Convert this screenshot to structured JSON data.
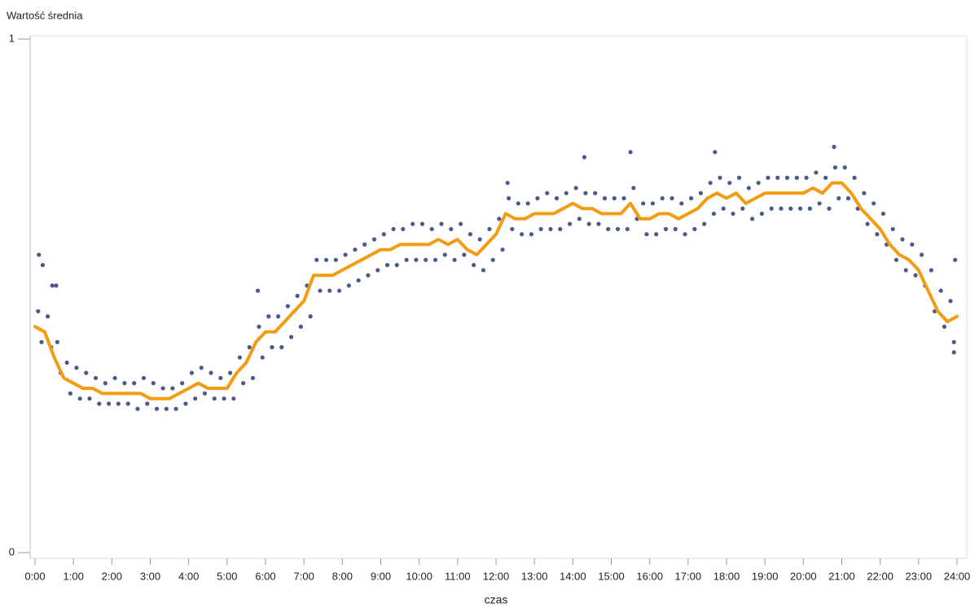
{
  "chart_data": {
    "type": "scatter",
    "y_label": "Wartość średnia",
    "x_label": "czas",
    "xlim": [
      0,
      24
    ],
    "ylim": [
      0,
      1
    ],
    "xticks": [
      {
        "value": 0,
        "label": "0:00"
      },
      {
        "value": 1,
        "label": "1:00"
      },
      {
        "value": 2,
        "label": "2:00"
      },
      {
        "value": 3,
        "label": "3:00"
      },
      {
        "value": 4,
        "label": "4:00"
      },
      {
        "value": 5,
        "label": "5:00"
      },
      {
        "value": 6,
        "label": "6:00"
      },
      {
        "value": 7,
        "label": "7:00"
      },
      {
        "value": 8,
        "label": "8:00"
      },
      {
        "value": 9,
        "label": "9:00"
      },
      {
        "value": 10,
        "label": "10:00"
      },
      {
        "value": 11,
        "label": "11:00"
      },
      {
        "value": 12,
        "label": "12:00"
      },
      {
        "value": 13,
        "label": "13:00"
      },
      {
        "value": 14,
        "label": "14:00"
      },
      {
        "value": 15,
        "label": "15:00"
      },
      {
        "value": 16,
        "label": "16:00"
      },
      {
        "value": 17,
        "label": "17:00"
      },
      {
        "value": 18,
        "label": "18:00"
      },
      {
        "value": 19,
        "label": "19:00"
      },
      {
        "value": 20,
        "label": "20:00"
      },
      {
        "value": 21,
        "label": "21:00"
      },
      {
        "value": 22,
        "label": "22:00"
      },
      {
        "value": 23,
        "label": "23:00"
      },
      {
        "value": 24,
        "label": "24:00"
      }
    ],
    "yticks": [
      0,
      1
    ],
    "series": [
      {
        "type": "scatter",
        "color": "#4b5a8c",
        "x": [
          0.08,
          0.17,
          0.33,
          0.42,
          0.58,
          0.67,
          0.83,
          0.92,
          1.08,
          1.17,
          1.33,
          1.42,
          1.58,
          1.67,
          1.83,
          1.92,
          2.08,
          2.17,
          2.33,
          2.42,
          2.58,
          2.67,
          2.83,
          2.92,
          3.08,
          3.17,
          3.33,
          3.42,
          3.58,
          3.67,
          3.83,
          3.92,
          4.08,
          4.17,
          4.33,
          4.42,
          4.58,
          4.67,
          4.83,
          4.92,
          5.08,
          5.17,
          5.33,
          5.42,
          5.58,
          5.67,
          5.83,
          5.92,
          6.08,
          6.17,
          6.33,
          6.42,
          6.58,
          6.67,
          6.83,
          6.92,
          7.08,
          7.17,
          7.33,
          7.42,
          7.58,
          7.67,
          7.83,
          7.92,
          8.08,
          8.17,
          8.33,
          8.42,
          8.58,
          8.67,
          8.83,
          8.92,
          9.08,
          9.17,
          9.33,
          9.42,
          9.58,
          9.67,
          9.83,
          9.92,
          10.08,
          10.17,
          10.33,
          10.42,
          10.58,
          10.67,
          10.83,
          10.92,
          11.08,
          11.17,
          11.33,
          11.42,
          11.58,
          11.67,
          11.83,
          11.92,
          12.08,
          12.17,
          12.33,
          12.42,
          12.58,
          12.67,
          12.83,
          12.92,
          13.08,
          13.17,
          13.33,
          13.42,
          13.58,
          13.67,
          13.83,
          13.92,
          14.08,
          14.17,
          14.33,
          14.42,
          14.58,
          14.67,
          14.83,
          14.92,
          15.08,
          15.17,
          15.33,
          15.42,
          15.58,
          15.67,
          15.83,
          15.92,
          16.08,
          16.17,
          16.33,
          16.42,
          16.58,
          16.67,
          16.83,
          16.92,
          17.08,
          17.17,
          17.33,
          17.42,
          17.58,
          17.67,
          17.83,
          17.92,
          18.08,
          18.17,
          18.33,
          18.42,
          18.58,
          18.67,
          18.83,
          18.92,
          19.08,
          19.17,
          19.33,
          19.42,
          19.58,
          19.67,
          19.83,
          19.92,
          20.08,
          20.17,
          20.33,
          20.42,
          20.58,
          20.67,
          20.83,
          20.92,
          21.08,
          21.17,
          21.33,
          21.42,
          21.58,
          21.67,
          21.83,
          21.92,
          22.08,
          22.17,
          22.33,
          22.42,
          22.58,
          22.67,
          22.83,
          22.92,
          23.08,
          23.17,
          23.33,
          23.42,
          23.58,
          23.67,
          23.83,
          23.92,
          0.1,
          0.2,
          0.45,
          0.55,
          5.8,
          12.3,
          14.3,
          15.5,
          17.7,
          20.8,
          23.92,
          23.95
        ],
        "values": [
          0.47,
          0.41,
          0.46,
          0.4,
          0.41,
          0.35,
          0.37,
          0.31,
          0.36,
          0.3,
          0.35,
          0.3,
          0.34,
          0.29,
          0.33,
          0.29,
          0.34,
          0.29,
          0.33,
          0.29,
          0.33,
          0.28,
          0.34,
          0.29,
          0.33,
          0.28,
          0.32,
          0.28,
          0.32,
          0.28,
          0.33,
          0.29,
          0.35,
          0.3,
          0.36,
          0.31,
          0.35,
          0.3,
          0.34,
          0.3,
          0.35,
          0.3,
          0.38,
          0.33,
          0.4,
          0.34,
          0.44,
          0.38,
          0.46,
          0.4,
          0.46,
          0.4,
          0.48,
          0.42,
          0.5,
          0.44,
          0.52,
          0.46,
          0.57,
          0.51,
          0.57,
          0.51,
          0.57,
          0.51,
          0.58,
          0.52,
          0.59,
          0.53,
          0.6,
          0.54,
          0.61,
          0.55,
          0.62,
          0.56,
          0.63,
          0.56,
          0.63,
          0.57,
          0.64,
          0.57,
          0.64,
          0.57,
          0.63,
          0.57,
          0.64,
          0.58,
          0.63,
          0.57,
          0.64,
          0.58,
          0.62,
          0.56,
          0.61,
          0.55,
          0.63,
          0.57,
          0.65,
          0.59,
          0.69,
          0.63,
          0.68,
          0.62,
          0.68,
          0.62,
          0.69,
          0.63,
          0.7,
          0.63,
          0.69,
          0.63,
          0.7,
          0.64,
          0.71,
          0.65,
          0.7,
          0.64,
          0.7,
          0.64,
          0.69,
          0.63,
          0.69,
          0.63,
          0.69,
          0.63,
          0.71,
          0.65,
          0.68,
          0.62,
          0.68,
          0.62,
          0.69,
          0.63,
          0.69,
          0.63,
          0.68,
          0.62,
          0.69,
          0.63,
          0.7,
          0.64,
          0.72,
          0.66,
          0.73,
          0.67,
          0.72,
          0.66,
          0.73,
          0.67,
          0.71,
          0.65,
          0.72,
          0.66,
          0.73,
          0.67,
          0.73,
          0.67,
          0.73,
          0.67,
          0.73,
          0.67,
          0.73,
          0.67,
          0.74,
          0.68,
          0.73,
          0.67,
          0.75,
          0.69,
          0.75,
          0.69,
          0.73,
          0.67,
          0.7,
          0.64,
          0.68,
          0.62,
          0.66,
          0.6,
          0.63,
          0.57,
          0.61,
          0.55,
          0.6,
          0.54,
          0.58,
          0.52,
          0.55,
          0.47,
          0.51,
          0.44,
          0.49,
          0.41,
          0.58,
          0.56,
          0.52,
          0.52,
          0.51,
          0.72,
          0.77,
          0.78,
          0.78,
          0.79,
          0.39,
          0.57
        ]
      },
      {
        "type": "line",
        "color": "#f39c12",
        "x": [
          0,
          0.25,
          0.5,
          0.75,
          1,
          1.25,
          1.5,
          1.75,
          2,
          2.25,
          2.5,
          2.75,
          3,
          3.25,
          3.5,
          3.75,
          4,
          4.25,
          4.5,
          4.75,
          5,
          5.25,
          5.5,
          5.75,
          6,
          6.25,
          6.5,
          6.75,
          7,
          7.25,
          7.5,
          7.75,
          8,
          8.25,
          8.5,
          8.75,
          9,
          9.25,
          9.5,
          9.75,
          10,
          10.25,
          10.5,
          10.75,
          11,
          11.25,
          11.5,
          11.75,
          12,
          12.25,
          12.5,
          12.75,
          13,
          13.25,
          13.5,
          13.75,
          14,
          14.25,
          14.5,
          14.75,
          15,
          15.25,
          15.5,
          15.75,
          16,
          16.25,
          16.5,
          16.75,
          17,
          17.25,
          17.5,
          17.75,
          18,
          18.25,
          18.5,
          18.75,
          19,
          19.25,
          19.5,
          19.75,
          20,
          20.25,
          20.5,
          20.75,
          21,
          21.25,
          21.5,
          21.75,
          22,
          22.25,
          22.5,
          22.75,
          23,
          23.25,
          23.5,
          23.75,
          24
        ],
        "values": [
          0.44,
          0.43,
          0.38,
          0.34,
          0.33,
          0.32,
          0.32,
          0.31,
          0.31,
          0.31,
          0.31,
          0.31,
          0.3,
          0.3,
          0.3,
          0.31,
          0.32,
          0.33,
          0.32,
          0.32,
          0.32,
          0.35,
          0.37,
          0.41,
          0.43,
          0.43,
          0.45,
          0.47,
          0.49,
          0.54,
          0.54,
          0.54,
          0.55,
          0.56,
          0.57,
          0.58,
          0.59,
          0.59,
          0.6,
          0.6,
          0.6,
          0.6,
          0.61,
          0.6,
          0.61,
          0.59,
          0.58,
          0.6,
          0.62,
          0.66,
          0.65,
          0.65,
          0.66,
          0.66,
          0.66,
          0.67,
          0.68,
          0.67,
          0.67,
          0.66,
          0.66,
          0.66,
          0.68,
          0.65,
          0.65,
          0.66,
          0.66,
          0.65,
          0.66,
          0.67,
          0.69,
          0.7,
          0.69,
          0.7,
          0.68,
          0.69,
          0.7,
          0.7,
          0.7,
          0.7,
          0.7,
          0.71,
          0.7,
          0.72,
          0.72,
          0.7,
          0.67,
          0.65,
          0.63,
          0.6,
          0.58,
          0.57,
          0.55,
          0.51,
          0.47,
          0.45,
          0.46
        ]
      }
    ]
  }
}
